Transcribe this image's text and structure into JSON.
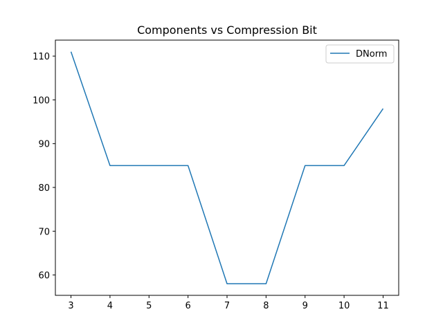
{
  "chart_data": {
    "type": "line",
    "title": "Components vs Compression Bit",
    "xlabel": "",
    "ylabel": "",
    "x": [
      3,
      4,
      5,
      6,
      7,
      8,
      9,
      10,
      11
    ],
    "series": [
      {
        "name": "DNorm",
        "values": [
          111,
          85,
          85,
          85,
          58,
          58,
          85,
          85,
          98
        ],
        "color": "#1f77b4"
      }
    ],
    "xlim": [
      2.6,
      11.4
    ],
    "ylim": [
      55.35,
      113.65
    ],
    "xticks": [
      3,
      4,
      5,
      6,
      7,
      8,
      9,
      10,
      11
    ],
    "yticks": [
      60,
      70,
      80,
      90,
      100,
      110
    ],
    "grid": false,
    "legend_position": "top-right"
  }
}
